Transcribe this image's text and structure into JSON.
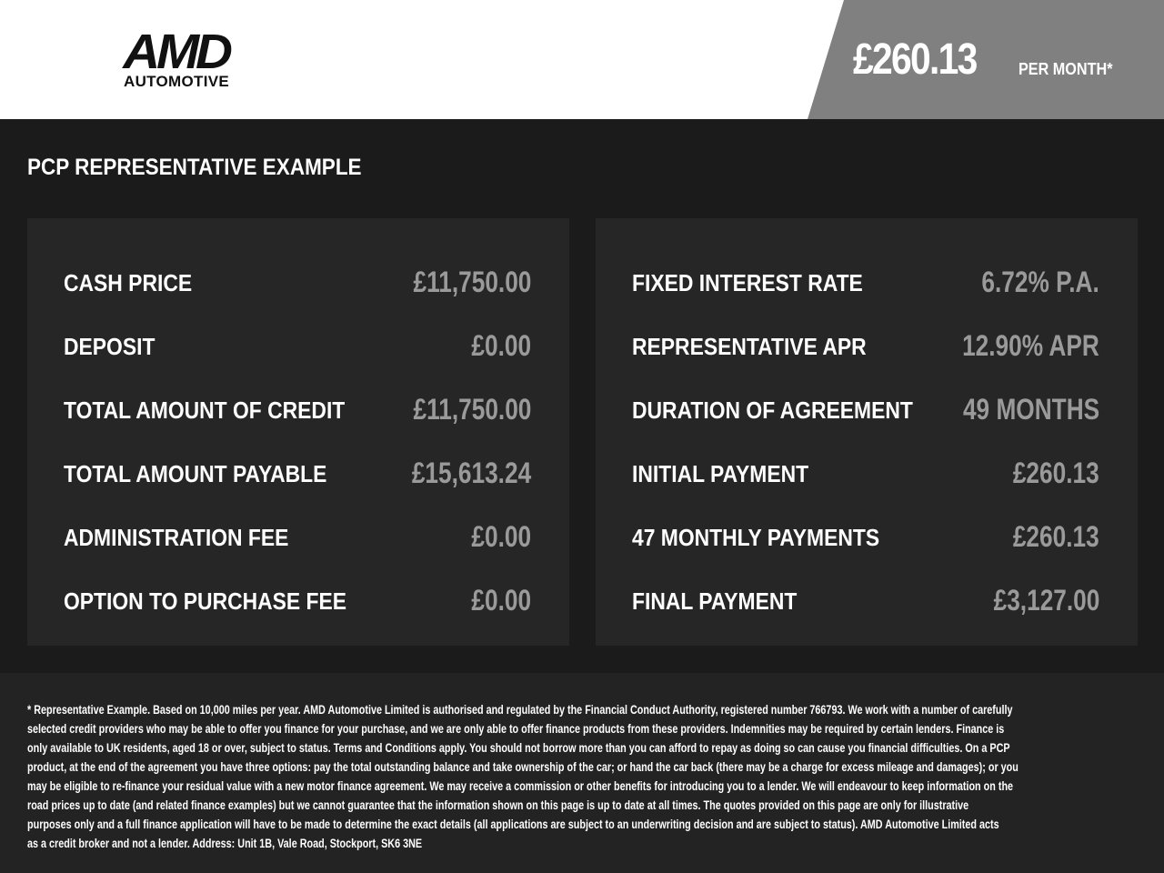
{
  "header": {
    "logo_text": "AMD",
    "logo_subtext": "AUTOMOTIVE",
    "monthly_price": "£260.13",
    "per_month": "PER MONTH*",
    "accent_color": "#808080"
  },
  "section_title": "PCP REPRESENTATIVE EXAMPLE",
  "left_panel": [
    {
      "label": "CASH PRICE",
      "value": "£11,750.00"
    },
    {
      "label": "DEPOSIT",
      "value": "£0.00"
    },
    {
      "label": "TOTAL AMOUNT OF CREDIT",
      "value": "£11,750.00"
    },
    {
      "label": "TOTAL AMOUNT PAYABLE",
      "value": "£15,613.24"
    },
    {
      "label": "ADMINISTRATION FEE",
      "value": "£0.00"
    },
    {
      "label": "OPTION TO PURCHASE FEE",
      "value": "£0.00"
    }
  ],
  "right_panel": [
    {
      "label": "FIXED INTEREST RATE",
      "value": "6.72% P.A."
    },
    {
      "label": "REPRESENTATIVE APR",
      "value": "12.90% APR"
    },
    {
      "label": "DURATION OF AGREEMENT",
      "value": "49 MONTHS"
    },
    {
      "label": "INITIAL PAYMENT",
      "value": "£260.13"
    },
    {
      "label": "47 MONTHLY PAYMENTS",
      "value": "£260.13"
    },
    {
      "label": "FINAL PAYMENT",
      "value": "£3,127.00"
    }
  ],
  "disclaimer_lines": [
    "* Representative Example. Based on 10,000 miles per year. AMD Automotive Limited is authorised and regulated by the Financial Conduct Authority, registered number 766793. We work with a number of carefully",
    "selected credit providers who may be able to offer you finance for your purchase, and we are only able to offer finance products from these providers. Indemnities may be required by certain lenders. Finance is",
    "only available to UK residents, aged 18 or over, subject to status. Terms and Conditions apply. You should not borrow more than you can afford to repay as doing so can cause you financial difficulties. On a PCP",
    "product, at the end of the agreement you have three options: pay the total outstanding balance and take ownership of the car; or hand the car back (there may be a charge for excess mileage and damages); or you",
    "may be eligible to re-finance your residual value with a new motor finance agreement. We may receive a commission or other benefits for introducing you to a lender. We will endeavour to keep information on the",
    "road prices up to date (and related finance examples) but we cannot guarantee that the information shown on this page is up to date at all times. The quotes provided on this page are only for illustrative",
    "purposes only and a full finance application will have to be made to determine the exact details (all applications are subject to an underwriting decision and are subject to status). AMD Automotive Limited acts",
    "as a credit broker and not a lender. Address: Unit 1B, Vale Road, Stockport, SK6 3NE"
  ]
}
